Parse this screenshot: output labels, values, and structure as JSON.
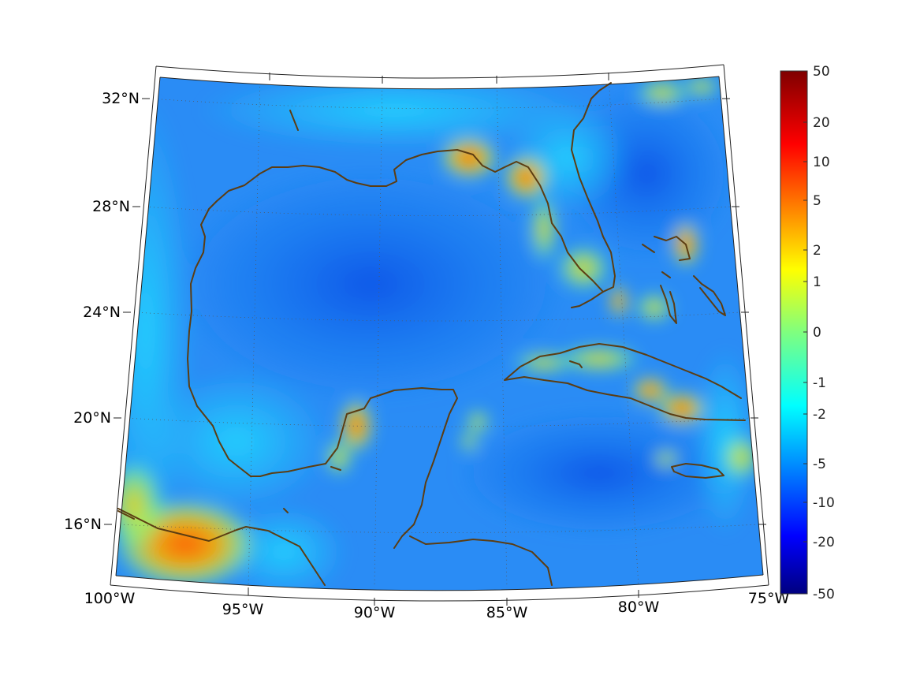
{
  "map": {
    "lat_labels": [
      "32°N",
      "28°N",
      "24°N",
      "20°N",
      "16°N"
    ],
    "lon_labels": [
      "100°W",
      "95°W",
      "90°W",
      "85°W",
      "80°W",
      "75°W"
    ],
    "extent": {
      "lon": [
        -100,
        -75
      ],
      "lat": [
        14,
        33
      ]
    },
    "coastline_color": "#5c3d12",
    "graticule": "dotted"
  },
  "colorbar": {
    "colormap": "jet",
    "tick_labels": [
      "50",
      "20",
      "10",
      "5",
      "2",
      "1",
      "0",
      "-1",
      "-2",
      "-5",
      "-10",
      "-20",
      "-50"
    ]
  }
}
